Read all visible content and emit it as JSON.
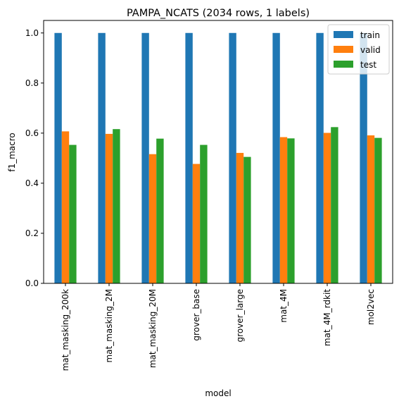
{
  "chart_data": {
    "type": "bar",
    "title": "PAMPA_NCATS (2034 rows, 1 labels)",
    "xlabel": "model",
    "ylabel": "f1_macro",
    "ylim": [
      0,
      1.05
    ],
    "yticks": [
      "0.0",
      "0.2",
      "0.4",
      "0.6",
      "0.8",
      "1.0"
    ],
    "grid": false,
    "legend_position": "top-right",
    "categories": [
      "mat_masking_200k",
      "mat_masking_2M",
      "mat_masking_20M",
      "grover_base",
      "grover_large",
      "mat_4M",
      "mat_4M_rdkit",
      "mol2vec"
    ],
    "series": [
      {
        "name": "train",
        "color": "#1f77b4",
        "values": [
          1.0,
          1.0,
          1.0,
          1.0,
          1.0,
          1.0,
          1.0,
          1.0
        ]
      },
      {
        "name": "valid",
        "color": "#ff7f0e",
        "values": [
          0.607,
          0.597,
          0.516,
          0.477,
          0.521,
          0.584,
          0.601,
          0.591
        ]
      },
      {
        "name": "test",
        "color": "#2ca02c",
        "values": [
          0.553,
          0.616,
          0.578,
          0.553,
          0.505,
          0.579,
          0.624,
          0.581
        ]
      }
    ]
  }
}
